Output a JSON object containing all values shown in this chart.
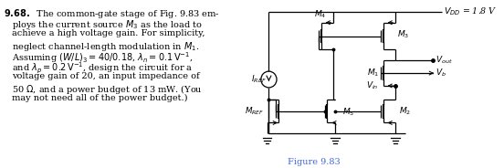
{
  "fig_label": "Figure 9.83",
  "fig_label_color": "#4169e1",
  "vdd_label": "$V_{DD}$ = 1.8 V",
  "iref_label": "$I_{REF}$",
  "text_lines": [
    "\\textbf{9.68.}  The common-gate stage of Fig. 9.83 em-",
    "ploys the current source $M_3$ as the load to",
    "achieve a high voltage gain. For simplicity,",
    "neglect channel-length modulation in $M_1$.",
    "Assuming $(W/L)_3 = 40/0.18$, $\\lambda_n = 0.1\\,\\mathrm{V}^{-1}$,",
    "and $\\lambda_p = 0.2\\,\\mathrm{V}^{-1}$, design the circuit for a",
    "voltage gain of 20, an input impedance of",
    "50 $\\Omega$, and a power budget of 13 mW. (You",
    "may not need all of the power budget.)"
  ],
  "bg_color": "#ffffff",
  "wire_color": "#000000",
  "label_color": "#000000"
}
